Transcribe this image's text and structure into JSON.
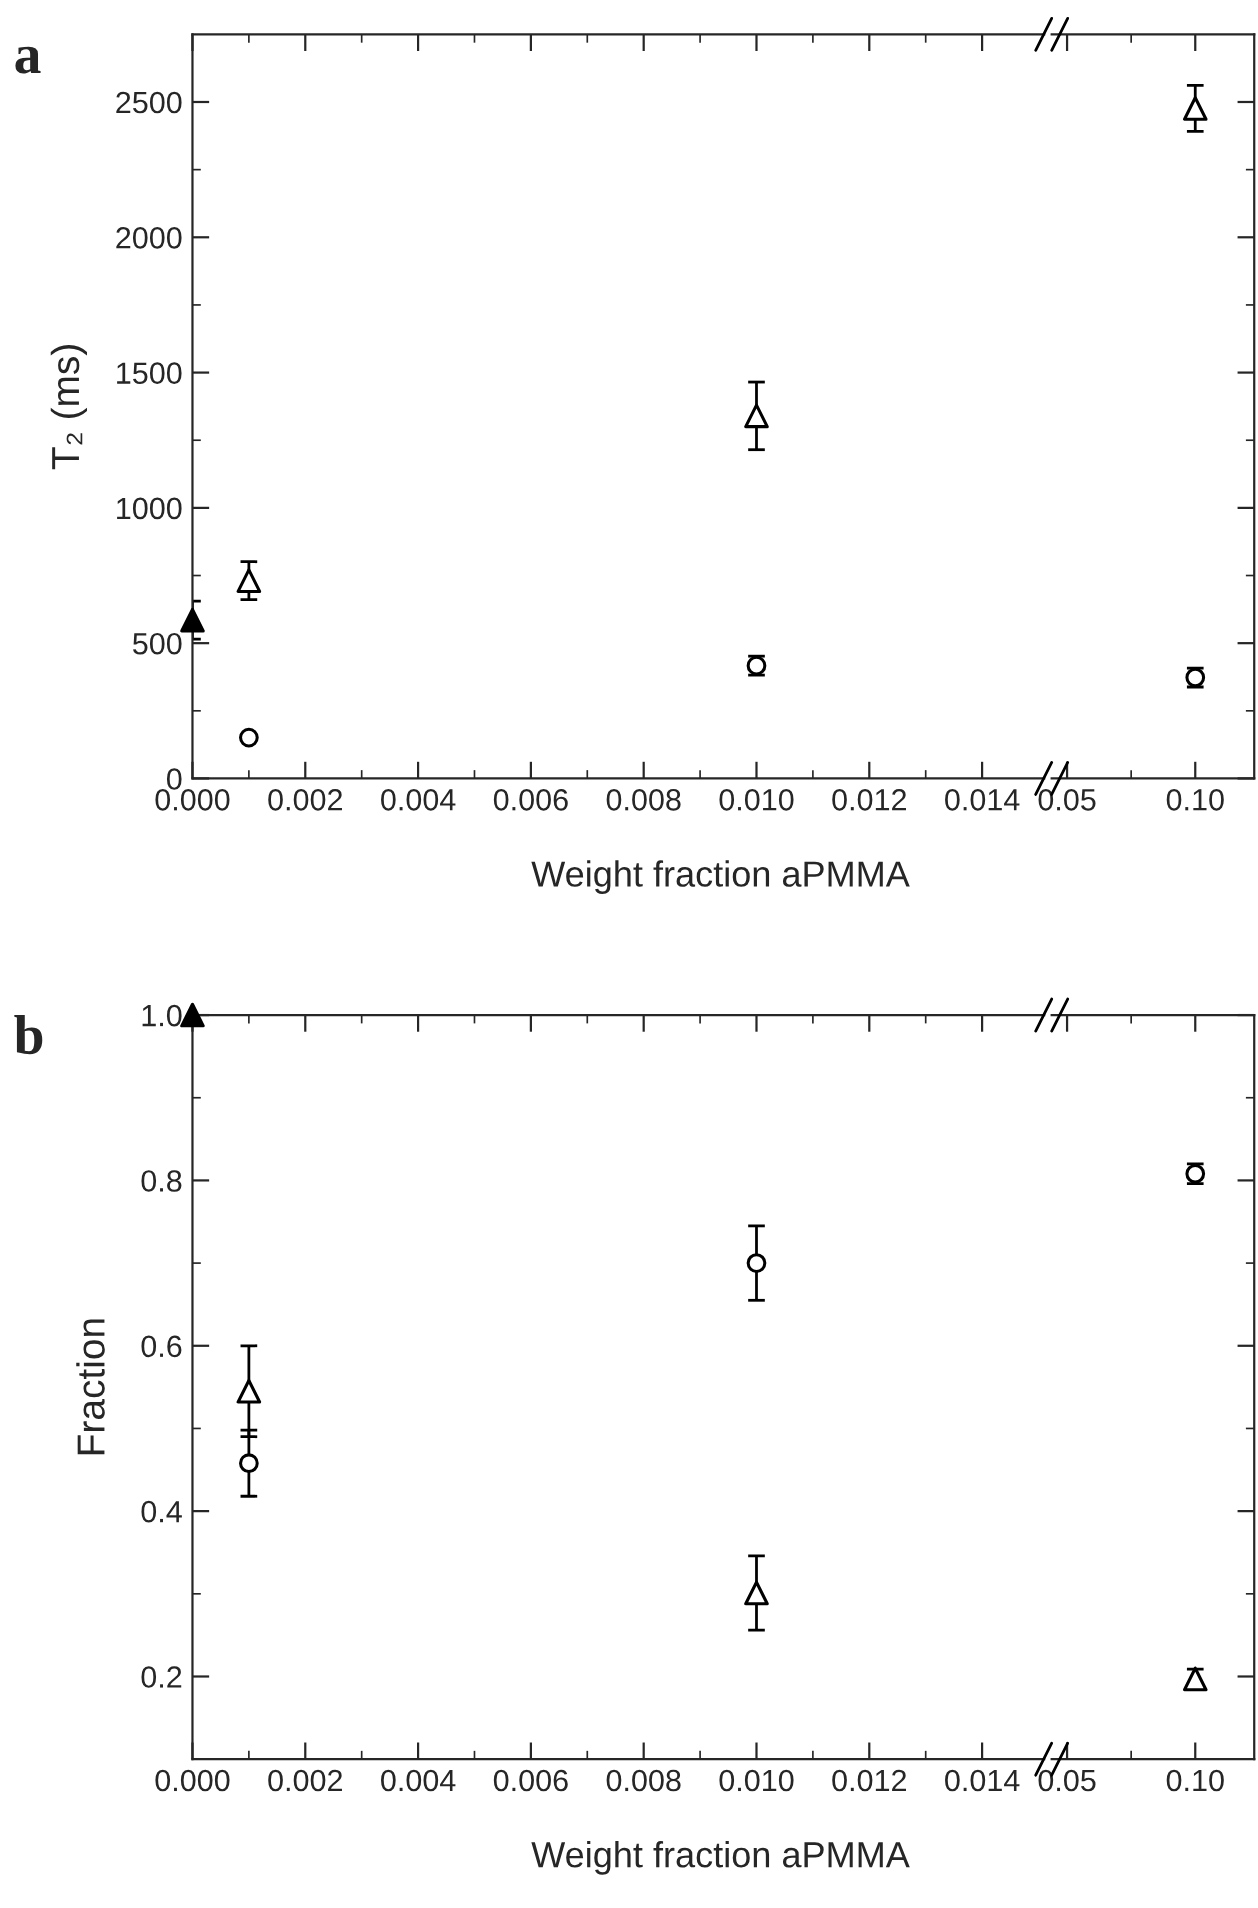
{
  "chart_data": [
    {
      "type": "scatter",
      "title": "a",
      "xlabel": "Weight fraction aPMMA",
      "ylabel": "T₂ (ms)",
      "xlim": [
        0,
        0.0151
      ],
      "ylim": [
        0,
        2750
      ],
      "xticks": [
        {
          "value": 0,
          "label": "0.000"
        },
        {
          "value": 0.002,
          "label": "0.002"
        },
        {
          "value": 0.004,
          "label": "0.004"
        },
        {
          "value": 0.006,
          "label": "0.006"
        },
        {
          "value": 0.008,
          "label": "0.008"
        },
        {
          "value": 0.01,
          "label": "0.010"
        },
        {
          "value": 0.012,
          "label": "0.012"
        },
        {
          "value": 0.014,
          "label": "0.014"
        }
      ],
      "yticks": [
        0,
        500,
        1000,
        1500,
        2000,
        2500
      ],
      "series": [
        {
          "marker": "triangle",
          "color": "#000000",
          "colors": [
            "#000000",
            "#ffffff",
            "#ffffff"
          ],
          "x": [
            0,
            0.001,
            0.01
          ],
          "values": [
            585,
            731,
            1340
          ],
          "errors": [
            70,
            70,
            125
          ]
        },
        {
          "marker": "circle",
          "color": "#000000",
          "colors": [
            "#ffffff",
            "#ffffff"
          ],
          "x": [
            0.001,
            0.01
          ],
          "values": [
            151,
            417
          ],
          "errors": [
            null,
            35
          ]
        }
      ]
    },
    {
      "type": "scatter",
      "xlim": [
        0.044,
        0.123
      ],
      "ylim": [
        0,
        2750
      ],
      "tick_labels": "x",
      "xticks": [
        {
          "value": 0.05,
          "label": "0.05"
        },
        {
          "value": 0.1,
          "label": "0.10"
        }
      ],
      "yticks": [
        0,
        500,
        1000,
        1500,
        2000,
        2500
      ],
      "series": [
        {
          "marker": "triangle",
          "color": "#000000",
          "colors": [
            "#ffffff"
          ],
          "x": [
            0.1
          ],
          "values": [
            2476
          ],
          "errors": [
            85
          ]
        },
        {
          "marker": "circle",
          "color": "#000000",
          "colors": [
            "#ffffff"
          ],
          "x": [
            0.1
          ],
          "values": [
            373
          ],
          "errors": [
            35
          ]
        }
      ]
    },
    {
      "type": "scatter",
      "title": "b",
      "xlabel": "Weight fraction aPMMA",
      "ylabel": "Fraction",
      "xlim": [
        0,
        0.0151
      ],
      "ylim": [
        0.1,
        1.0
      ],
      "xticks": [
        {
          "value": 0,
          "label": "0.000"
        },
        {
          "value": 0.002,
          "label": "0.002"
        },
        {
          "value": 0.004,
          "label": "0.004"
        },
        {
          "value": 0.006,
          "label": "0.006"
        },
        {
          "value": 0.008,
          "label": "0.008"
        },
        {
          "value": 0.01,
          "label": "0.010"
        },
        {
          "value": 0.012,
          "label": "0.012"
        },
        {
          "value": 0.014,
          "label": "0.014"
        }
      ],
      "yticks": [
        {
          "value": 0.2,
          "label": "0.2"
        },
        {
          "value": 0.4,
          "label": "0.4"
        },
        {
          "value": 0.6,
          "label": "0.6"
        },
        {
          "value": 0.8,
          "label": "0.8"
        },
        {
          "value": 1.0,
          "label": "1.0"
        }
      ],
      "series": [
        {
          "marker": "triangle",
          "color": "#000000",
          "colors": [
            "#000000",
            "#ffffff",
            "#ffffff"
          ],
          "x": [
            0,
            0.001,
            0.01
          ],
          "values": [
            1.0,
            0.545,
            0.301
          ],
          "errors": [
            null,
            0.055,
            0.045
          ]
        },
        {
          "marker": "circle",
          "color": "#000000",
          "colors": [
            "#ffffff",
            "#ffffff"
          ],
          "x": [
            0.001,
            0.01
          ],
          "values": [
            0.458,
            0.7
          ],
          "errors": [
            0.04,
            0.045
          ]
        }
      ]
    },
    {
      "type": "scatter",
      "xlim": [
        0.044,
        0.123
      ],
      "ylim": [
        0.1,
        1.0
      ],
      "tick_labels": "x",
      "xticks": [
        {
          "value": 0.05,
          "label": "0.05"
        },
        {
          "value": 0.1,
          "label": "0.10"
        }
      ],
      "yticks": [
        {
          "value": 0.2,
          "label": null
        },
        {
          "value": 0.4,
          "label": null
        },
        {
          "value": 0.6,
          "label": null
        },
        {
          "value": 0.8,
          "label": null
        },
        {
          "value": 1.0,
          "label": null
        }
      ],
      "series": [
        {
          "marker": "triangle",
          "color": "#000000",
          "colors": [
            "#ffffff"
          ],
          "x": [
            0.1
          ],
          "values": [
            0.197
          ],
          "errors": [
            0.012
          ]
        },
        {
          "marker": "circle",
          "color": "#000000",
          "colors": [
            "#ffffff"
          ],
          "x": [
            0.1
          ],
          "values": [
            0.808
          ],
          "errors": [
            0.012
          ]
        }
      ]
    }
  ]
}
